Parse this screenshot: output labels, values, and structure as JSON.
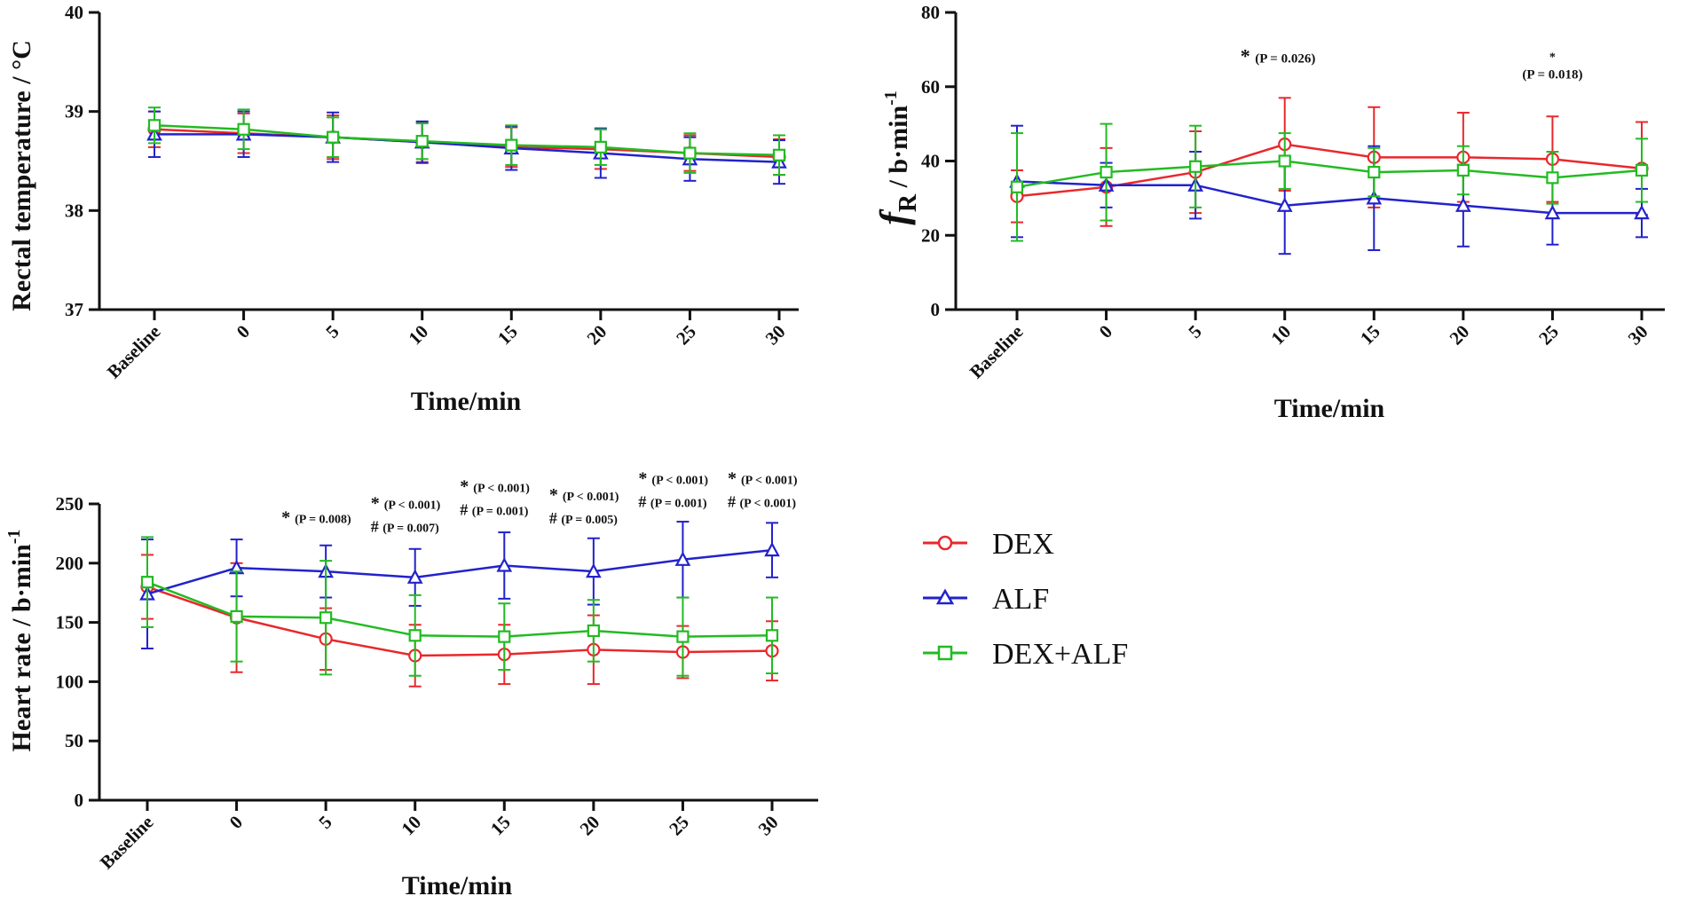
{
  "colors": {
    "DEX": "#e8282c",
    "ALF": "#2222cc",
    "DEX+ALF": "#22bb22",
    "axis": "#111111"
  },
  "legend": {
    "items": [
      {
        "name": "DEX",
        "marker": "circle"
      },
      {
        "name": "ALF",
        "marker": "triangle"
      },
      {
        "name": "DEX+ALF",
        "marker": "square"
      }
    ]
  },
  "chart_data": [
    {
      "id": "temp",
      "type": "line",
      "title": "",
      "xlabel": "Time/min",
      "ylabel": "Rectal temperature / °C",
      "categories": [
        "Baseline",
        "0",
        "5",
        "10",
        "15",
        "20",
        "25",
        "30"
      ],
      "ylim": [
        37,
        40
      ],
      "yticks": [
        37,
        38,
        39,
        40
      ],
      "grid": false,
      "series": [
        {
          "name": "DEX",
          "values": [
            38.82,
            38.78,
            38.74,
            38.69,
            38.64,
            38.62,
            38.58,
            38.54
          ],
          "errors": [
            0.18,
            0.2,
            0.22,
            0.2,
            0.2,
            0.2,
            0.18,
            0.18
          ]
        },
        {
          "name": "ALF",
          "values": [
            38.77,
            38.77,
            38.74,
            38.69,
            38.63,
            38.58,
            38.52,
            38.49
          ],
          "errors": [
            0.23,
            0.23,
            0.25,
            0.21,
            0.22,
            0.25,
            0.22,
            0.22
          ]
        },
        {
          "name": "DEX+ALF",
          "values": [
            38.86,
            38.82,
            38.74,
            38.7,
            38.66,
            38.64,
            38.58,
            38.56
          ],
          "errors": [
            0.18,
            0.2,
            0.2,
            0.18,
            0.2,
            0.18,
            0.2,
            0.2
          ]
        }
      ],
      "annotations": []
    },
    {
      "id": "fr",
      "type": "line",
      "title": "",
      "xlabel": "Time/min",
      "ylabel_main": "f",
      "ylabel_sub": "R",
      "ylabel_unit": " / b·min",
      "ylabel_sup": "-1",
      "categories": [
        "Baseline",
        "0",
        "5",
        "10",
        "15",
        "20",
        "25",
        "30"
      ],
      "ylim": [
        0,
        80
      ],
      "yticks": [
        0,
        20,
        40,
        60,
        80
      ],
      "grid": false,
      "series": [
        {
          "name": "DEX",
          "values": [
            30.5,
            33,
            37,
            44.5,
            41,
            41,
            40.5,
            38
          ],
          "errors": [
            7,
            10.5,
            11,
            12.5,
            13.5,
            12,
            11.5,
            12.5
          ]
        },
        {
          "name": "ALF",
          "values": [
            34.5,
            33.5,
            33.5,
            28,
            30,
            28,
            26,
            26
          ],
          "errors": [
            15,
            6,
            9,
            13,
            14,
            11,
            8.5,
            6.5
          ]
        },
        {
          "name": "DEX+ALF",
          "values": [
            33,
            37,
            38.5,
            40,
            37,
            37.5,
            35.5,
            37.5
          ],
          "errors": [
            14.5,
            13,
            11,
            7.5,
            6.5,
            6.5,
            7,
            8.5
          ]
        }
      ],
      "annotations": [
        {
          "cat": 3,
          "star": "*",
          "text": "(P = 0.026)",
          "layout": "inline",
          "value": 66.5
        },
        {
          "cat": 6,
          "star": "*",
          "text": "(P = 0.018)",
          "layout": "stacked",
          "value": 66
        }
      ]
    },
    {
      "id": "hr",
      "type": "line",
      "title": "",
      "xlabel": "Time/min",
      "ylabel_main": "Heart rate / b·min",
      "ylabel_sup": "-1",
      "categories": [
        "Baseline",
        "0",
        "5",
        "10",
        "15",
        "20",
        "25",
        "30"
      ],
      "ylim": [
        0,
        250
      ],
      "yticks": [
        0,
        50,
        100,
        150,
        200,
        250
      ],
      "grid": false,
      "series": [
        {
          "name": "DEX",
          "values": [
            180,
            154,
            136,
            122,
            123,
            127,
            125,
            126
          ],
          "errors": [
            27,
            46,
            26,
            26,
            25,
            29,
            22,
            25
          ]
        },
        {
          "name": "ALF",
          "values": [
            174,
            196,
            193,
            188,
            198,
            193,
            203,
            211
          ],
          "errors": [
            46,
            24,
            22,
            24,
            28,
            28,
            32,
            23
          ]
        },
        {
          "name": "DEX+ALF",
          "values": [
            184,
            155,
            154,
            139,
            138,
            143,
            138,
            139
          ],
          "errors": [
            38,
            38,
            48,
            34,
            28,
            26,
            33,
            32
          ]
        }
      ],
      "annotations": [
        {
          "cat": 2,
          "star": "*",
          "p1": "(P = 0.008)",
          "value": 234
        },
        {
          "cat": 3,
          "star": "*",
          "p1": "(P < 0.001)",
          "hash": "#",
          "p2": "(P = 0.007)",
          "value": 246
        },
        {
          "cat": 4,
          "star": "*",
          "p1": "(P < 0.001)",
          "hash": "#",
          "p2": "(P = 0.001)",
          "value": 260
        },
        {
          "cat": 5,
          "star": "*",
          "p1": "(P < 0.001)",
          "hash": "#",
          "p2": "(P = 0.005)",
          "value": 253
        },
        {
          "cat": 6,
          "star": "*",
          "p1": "(P < 0.001)",
          "hash": "#",
          "p2": "(P = 0.001)",
          "value": 267
        },
        {
          "cat": 7,
          "star": "*",
          "p1": "(P < 0.001)",
          "hash": "#",
          "p2": "(P < 0.001)",
          "value": 267
        }
      ]
    }
  ]
}
